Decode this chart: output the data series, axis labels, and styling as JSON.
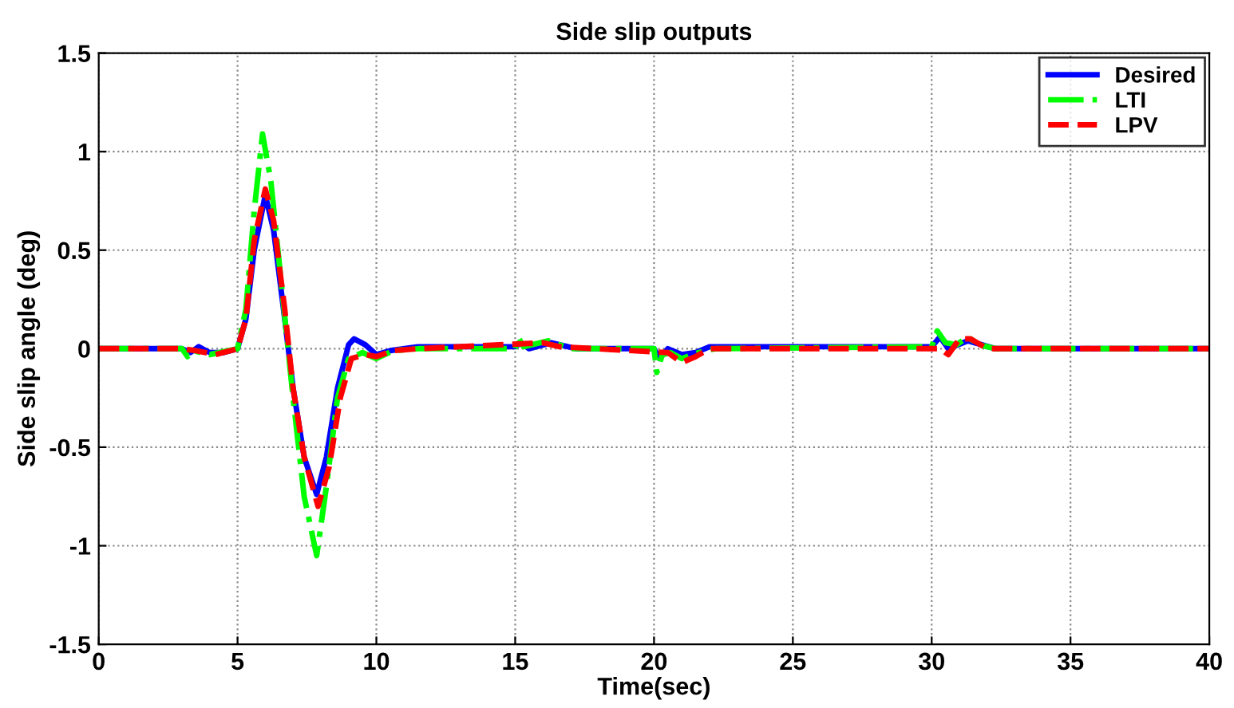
{
  "chart_data": {
    "type": "line",
    "title": "Side slip outputs",
    "xlabel": "Time(sec)",
    "ylabel": "Side slip angle (deg)",
    "xlim": [
      0,
      40
    ],
    "xticks": [
      0,
      5,
      10,
      15,
      20,
      25,
      30,
      35,
      40
    ],
    "ylim": [
      -1.5,
      1.5
    ],
    "yticks": [
      -1.5,
      -1,
      -0.5,
      0,
      0.5,
      1,
      1.5
    ],
    "grid": true,
    "legend": "top right",
    "series": [
      {
        "name": "Desired",
        "color": "#0000ff",
        "line_style": "solid",
        "x": [
          0,
          3,
          3.3,
          3.6,
          4,
          4.5,
          5,
          5.3,
          5.6,
          6.0,
          6.3,
          6.7,
          7.0,
          7.4,
          7.85,
          8.2,
          8.6,
          9.0,
          9.2,
          9.6,
          10,
          10.5,
          11.5,
          15,
          15.2,
          15.5,
          16.3,
          17.2,
          20,
          20.2,
          20.5,
          21,
          21.5,
          22,
          30,
          30.3,
          30.6,
          31.3,
          32.3,
          40
        ],
        "values": [
          0,
          0,
          -0.02,
          0.01,
          -0.02,
          -0.02,
          0,
          0.15,
          0.5,
          0.78,
          0.6,
          0.15,
          -0.2,
          -0.55,
          -0.74,
          -0.55,
          -0.2,
          0.02,
          0.05,
          0.02,
          -0.03,
          -0.01,
          0.01,
          0.01,
          0.03,
          0.0,
          0.03,
          0.0,
          0.0,
          -0.05,
          0.0,
          -0.03,
          -0.02,
          0.01,
          0.01,
          0.06,
          0.0,
          0.04,
          0.0,
          0
        ]
      },
      {
        "name": "LTI",
        "color": "#00ff00",
        "line_style": "dashdot",
        "x": [
          0,
          3,
          3.2,
          3.4,
          4,
          5,
          5.3,
          5.6,
          5.9,
          6.2,
          6.6,
          7.0,
          7.4,
          7.85,
          8.2,
          8.6,
          9.0,
          9.5,
          10,
          10.6,
          11.5,
          15,
          15.1,
          15.3,
          16.2,
          17,
          20,
          20.1,
          20.3,
          20.6,
          21,
          21.6,
          22.2,
          30,
          30.2,
          30.5,
          30.9,
          31.3,
          31.7,
          32.3,
          40
        ],
        "values": [
          0,
          0,
          -0.04,
          -0.01,
          -0.03,
          0,
          0.2,
          0.7,
          1.09,
          0.85,
          0.3,
          -0.25,
          -0.75,
          -1.05,
          -0.7,
          -0.25,
          -0.05,
          -0.02,
          -0.05,
          -0.01,
          0.0,
          0.0,
          0.06,
          0.01,
          0.04,
          0.0,
          0.0,
          -0.12,
          -0.03,
          -0.02,
          -0.05,
          -0.02,
          0.0,
          0.01,
          0.09,
          0.03,
          0.02,
          0.06,
          0.02,
          0.0,
          0
        ]
      },
      {
        "name": "LPV",
        "color": "#ff0000",
        "line_style": "dashed",
        "x": [
          0,
          3,
          3.5,
          4.2,
          5,
          5.3,
          5.6,
          6.0,
          6.3,
          6.7,
          7.0,
          7.4,
          7.9,
          8.3,
          8.7,
          9.1,
          9.6,
          10,
          10.6,
          11.5,
          16,
          16.6,
          20.5,
          21,
          21.5,
          22,
          30.3,
          30.6,
          31,
          31.4,
          32,
          40
        ],
        "values": [
          0,
          0,
          -0.01,
          -0.03,
          0,
          0.15,
          0.55,
          0.81,
          0.65,
          0.2,
          -0.2,
          -0.55,
          -0.8,
          -0.6,
          -0.25,
          -0.05,
          -0.03,
          -0.04,
          -0.01,
          0,
          0.03,
          0.01,
          -0.02,
          -0.07,
          -0.04,
          0,
          0.0,
          -0.03,
          0.05,
          0.05,
          0.0,
          0
        ]
      }
    ]
  }
}
